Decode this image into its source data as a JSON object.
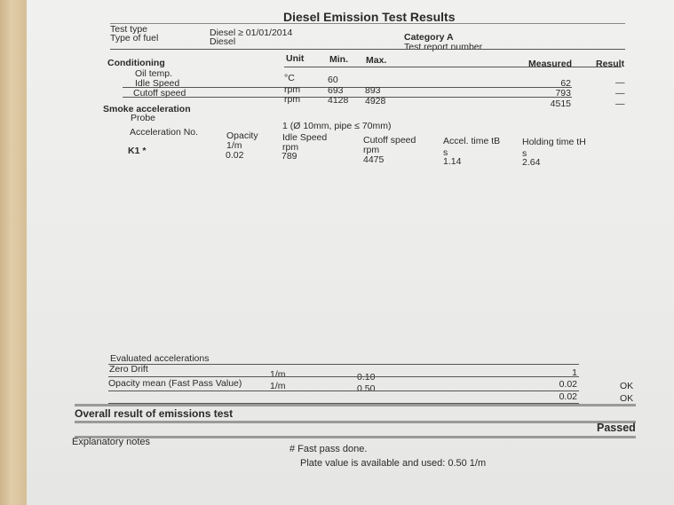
{
  "title": "Diesel Emission Test Results",
  "header": {
    "test_type_label": "Test type",
    "test_type_value": "Diesel ≥ 01/01/2014",
    "fuel_label": "Type of fuel",
    "fuel_value": "Diesel",
    "category": "Category A",
    "report_number_label": "Test report number"
  },
  "conditioning": {
    "title": "Conditioning",
    "columns": {
      "unit": "Unit",
      "min": "Min.",
      "max": "Max.",
      "measured": "Measured",
      "result": "Result"
    },
    "rows": [
      {
        "label": "Oil temp.",
        "unit": "°C",
        "min": "60",
        "max": "",
        "measured": "62",
        "result": "—"
      },
      {
        "label": "Idle Speed",
        "unit": "rpm",
        "min": "693",
        "max": "893",
        "measured": "793",
        "result": "—"
      },
      {
        "label": "Cutoff speed",
        "unit": "rpm",
        "min": "4128",
        "max": "4928",
        "measured": "4515",
        "result": "—"
      }
    ]
  },
  "smoke": {
    "title": "Smoke acceleration",
    "probe_label": "Probe",
    "probe_value": "1 (Ø 10mm, pipe ≤ 70mm)",
    "accel_no_label": "Acceleration No.",
    "columns": [
      {
        "label": "Opacity",
        "unit": "1/m",
        "value": "0.02"
      },
      {
        "label": "Idle Speed",
        "unit": "rpm",
        "value": "789"
      },
      {
        "label": "Cutoff speed",
        "unit": "rpm",
        "value": "4475"
      },
      {
        "label": "Accel. time tB",
        "unit": "s",
        "value": "1.14"
      },
      {
        "label": "Holding time tH",
        "unit": "s",
        "value": "2.64"
      }
    ],
    "row_label": "K1 *"
  },
  "evaluated": {
    "title": "Evaluated accelerations",
    "rows": [
      {
        "label": "Zero Drift",
        "unit": "1/m",
        "limit": "0.10",
        "measured": "1",
        "result": ""
      },
      {
        "label": "Opacity mean (Fast Pass Value)",
        "unit": "1/m",
        "limit": "0.50",
        "measured": "0.02",
        "result": "OK"
      },
      {
        "label": "",
        "unit": "",
        "limit": "",
        "measured": "0.02",
        "result": "OK"
      }
    ]
  },
  "overall": {
    "label": "Overall result of emissions test",
    "value": "Passed"
  },
  "notes": {
    "label": "Explanatory notes",
    "line1": "# Fast pass done.",
    "line2": "Plate value is available and used: 0.50 1/m"
  }
}
